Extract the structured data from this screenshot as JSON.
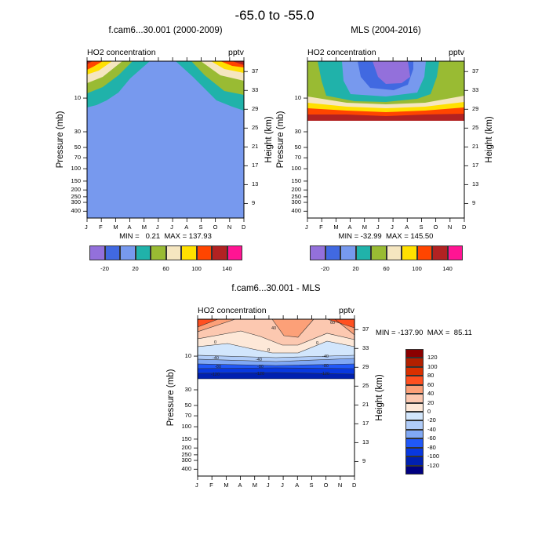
{
  "page_title": "-65.0 to -55.0",
  "axes": {
    "months": [
      "J",
      "F",
      "M",
      "A",
      "M",
      "J",
      "J",
      "A",
      "S",
      "O",
      "N",
      "D"
    ],
    "pressure_ticks": [
      "10",
      "30",
      "50",
      "70",
      "100",
      "150",
      "200",
      "250",
      "300",
      "400"
    ],
    "height_ticks": [
      "37",
      "33",
      "29",
      "25",
      "21",
      "17",
      "13",
      "9"
    ],
    "pressure_range_mb": [
      3,
      500
    ],
    "height_range_km": [
      5.9,
      39.2
    ]
  },
  "panels": [
    {
      "title": "f.cam6...30.001 (2000-2009)",
      "left_label": "HO2 concentration",
      "right_label": "pptv",
      "ylabel": "Pressure (mb)",
      "y2label": "Height (km)",
      "stats": "MIN =   0.21  MAX = 137.93",
      "colorbar": {
        "labels": [
          "-20",
          "20",
          "60",
          "100",
          "140"
        ],
        "colors": [
          "#9370DB",
          "#4169E1",
          "#7799EE",
          "#20B2AA",
          "#99BB33",
          "#F5E6C0",
          "#FFE000",
          "#FF4500",
          "#B22222",
          "#FF1493"
        ]
      }
    },
    {
      "title": "MLS (2004-2016)",
      "left_label": "HO2 concentration",
      "right_label": "pptv",
      "ylabel": "Pressure (mb)",
      "y2label": "Height (km)",
      "stats": "MIN = -32.99  MAX = 145.50",
      "colorbar": {
        "labels": [
          "-20",
          "20",
          "60",
          "100",
          "140"
        ],
        "colors": [
          "#9370DB",
          "#4169E1",
          "#7799EE",
          "#20B2AA",
          "#99BB33",
          "#F5E6C0",
          "#FFE000",
          "#FF4500",
          "#B22222",
          "#FF1493"
        ]
      }
    },
    {
      "title": "f.cam6...30.001 - MLS",
      "left_label": "HO2 concentration",
      "right_label": "pptv",
      "ylabel": "Pressure (mb)",
      "y2label": "Height (km)",
      "stats": "MIN = -137.90  MAX =  85.11",
      "contour_labels": [
        "40",
        "60",
        "0",
        "0",
        "0",
        "-40",
        "-40",
        "-40",
        "-80",
        "-80",
        "-80",
        "-120",
        "-120",
        "-120"
      ],
      "colorbar": {
        "labels": [
          "120",
          "100",
          "80",
          "60",
          "40",
          "20",
          "0",
          "-20",
          "-40",
          "-60",
          "-80",
          "-100",
          "-120"
        ],
        "colors": [
          "#8B0000",
          "#B22000",
          "#D93000",
          "#FF5020",
          "#FCA078",
          "#FCC8B0",
          "#FDE8D8",
          "#D2E6FC",
          "#B0CCF8",
          "#80A8F4",
          "#2058F8",
          "#0838E0",
          "#0020B0",
          "#000080"
        ]
      }
    }
  ],
  "chart_data": [
    {
      "type": "heatmap",
      "title": "f.cam6...30.001 (2000-2009)",
      "xlabel": "",
      "ylabel": "Pressure (mb)",
      "y2label": "Height (km)",
      "x": [
        "J",
        "F",
        "M",
        "A",
        "M",
        "J",
        "J",
        "A",
        "S",
        "O",
        "N",
        "D"
      ],
      "levels": [
        -20,
        0,
        20,
        40,
        60,
        80,
        100,
        120,
        140
      ],
      "min": 0.21,
      "max": 137.93,
      "units": "pptv",
      "ylim": [
        500,
        3
      ]
    },
    {
      "type": "heatmap",
      "title": "MLS (2004-2016)",
      "xlabel": "",
      "ylabel": "Pressure (mb)",
      "y2label": "Height (km)",
      "x": [
        "J",
        "F",
        "M",
        "A",
        "M",
        "J",
        "J",
        "A",
        "S",
        "O",
        "N",
        "D"
      ],
      "levels": [
        -20,
        0,
        20,
        40,
        60,
        80,
        100,
        120,
        140
      ],
      "min": -32.99,
      "max": 145.5,
      "units": "pptv",
      "ylim": [
        500,
        3
      ]
    },
    {
      "type": "heatmap",
      "title": "f.cam6...30.001 - MLS",
      "xlabel": "",
      "ylabel": "Pressure (mb)",
      "y2label": "Height (km)",
      "x": [
        "J",
        "F",
        "M",
        "A",
        "M",
        "J",
        "J",
        "A",
        "S",
        "O",
        "N",
        "D"
      ],
      "levels": [
        -120,
        -100,
        -80,
        -60,
        -40,
        -20,
        0,
        20,
        40,
        60,
        80,
        100,
        120
      ],
      "min": -137.9,
      "max": 85.11,
      "units": "pptv",
      "ylim": [
        500,
        3
      ]
    }
  ]
}
